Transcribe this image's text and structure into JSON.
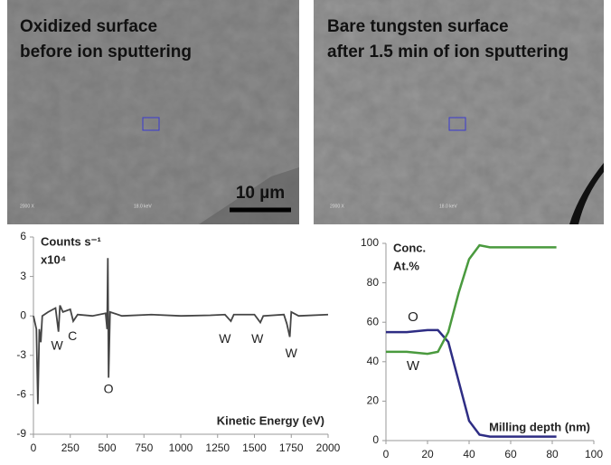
{
  "images": [
    {
      "title": [
        "Oxidized surface",
        "before ion sputtering"
      ],
      "magnification": "2000 X",
      "voltage": "18.0 keV"
    },
    {
      "title": [
        "Bare tungsten surface",
        "after 1.5 min of ion sputtering"
      ],
      "magnification": "2000 X",
      "voltage": "18.0 keV"
    }
  ],
  "scale_bar": "10 µm",
  "chart_data": [
    {
      "type": "line",
      "title": [
        "Counts s⁻¹",
        "x10⁴"
      ],
      "x_label": "Kinetic Energy (eV)",
      "x": [
        0,
        20,
        30,
        40,
        50,
        60,
        100,
        150,
        170,
        180,
        200,
        250,
        270,
        300,
        400,
        490,
        500,
        505,
        510,
        520,
        600,
        800,
        1000,
        1200,
        1300,
        1340,
        1360,
        1500,
        1540,
        1560,
        1700,
        1720,
        1740,
        1750,
        1800,
        2000
      ],
      "series": [
        {
          "color": "#454545",
          "values": [
            0,
            -1,
            -6.7,
            -1,
            -2,
            0,
            0.3,
            0.6,
            -1.2,
            0.8,
            0.3,
            0.5,
            -0.4,
            0.1,
            0,
            0.2,
            -1,
            4.4,
            -4.7,
            0.3,
            0,
            0.1,
            0,
            0.05,
            0.1,
            -0.4,
            0.1,
            0.1,
            -0.5,
            0,
            0.1,
            -0.6,
            -1.6,
            0.3,
            0,
            0.1
          ]
        }
      ],
      "xlim": [
        0,
        2000
      ],
      "xticks": [
        0,
        250,
        500,
        750,
        1000,
        1250,
        1500,
        1750,
        2000
      ],
      "ylim": [
        -9,
        6
      ],
      "yticks": [
        -9,
        -6,
        -3,
        0,
        3,
        6
      ],
      "annotations": [
        {
          "text": "W",
          "x": 160,
          "y": -2.3
        },
        {
          "text": "C",
          "x": 265,
          "y": -1.6
        },
        {
          "text": "O",
          "x": 510,
          "y": -5.6
        },
        {
          "text": "W",
          "x": 1300,
          "y": -1.8
        },
        {
          "text": "W",
          "x": 1520,
          "y": -1.8
        },
        {
          "text": "W",
          "x": 1750,
          "y": -2.9
        }
      ]
    },
    {
      "type": "line",
      "title": [
        "Conc.",
        "At.%"
      ],
      "x_label": "Milling depth (nm)",
      "x": [
        0,
        10,
        20,
        25,
        30,
        35,
        40,
        45,
        50,
        60,
        82
      ],
      "series": [
        {
          "name": "O",
          "color": "#2e2d84",
          "values": [
            55,
            55,
            56,
            56,
            50,
            30,
            10,
            3,
            2,
            2,
            2
          ]
        },
        {
          "name": "W",
          "color": "#4a9a3e",
          "values": [
            45,
            45,
            44,
            45,
            55,
            75,
            92,
            99,
            98,
            98,
            98
          ]
        }
      ],
      "xlim": [
        0,
        100
      ],
      "xticks": [
        0,
        20,
        40,
        60,
        80,
        100
      ],
      "ylim": [
        0,
        100
      ],
      "yticks": [
        0,
        20,
        40,
        60,
        80,
        100
      ]
    }
  ]
}
